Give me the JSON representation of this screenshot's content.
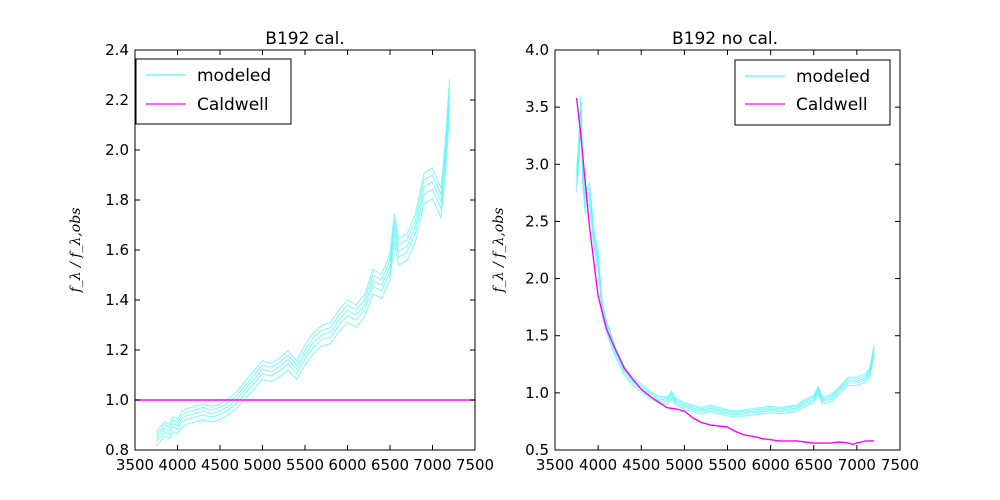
{
  "chart_data": [
    {
      "type": "line",
      "title": "B192 cal.",
      "ylabel": "f_λ / f_λ,obs",
      "xlim": [
        3500,
        7500
      ],
      "ylim": [
        0.8,
        2.4
      ],
      "xticks": [
        3500,
        4000,
        4500,
        5000,
        5500,
        6000,
        6500,
        7000,
        7500
      ],
      "yticks": [
        0.8,
        1.0,
        1.2,
        1.4,
        1.6,
        1.8,
        2.0,
        2.2,
        2.4
      ],
      "ytick_decimals": 1,
      "legend": {
        "position": "top-left",
        "entries": [
          "modeled",
          "Caldwell"
        ]
      },
      "colors": {
        "modeled": "#5ff5f5",
        "caldwell": "#ff00ff"
      },
      "series": [
        {
          "name": "modeled",
          "x": [
            3750,
            3800,
            3850,
            3900,
            3950,
            4000,
            4050,
            4100,
            4200,
            4300,
            4400,
            4500,
            4600,
            4700,
            4800,
            4900,
            5000,
            5100,
            5200,
            5300,
            5400,
            5500,
            5600,
            5700,
            5800,
            5900,
            6000,
            6100,
            6200,
            6300,
            6400,
            6500,
            6550,
            6600,
            6700,
            6800,
            6900,
            7000,
            7100,
            7150,
            7200
          ],
          "y": [
            0.86,
            0.88,
            0.9,
            0.89,
            0.92,
            0.91,
            0.94,
            0.95,
            0.96,
            0.97,
            0.96,
            0.97,
            0.99,
            1.02,
            1.06,
            1.1,
            1.14,
            1.13,
            1.15,
            1.18,
            1.14,
            1.2,
            1.25,
            1.28,
            1.29,
            1.34,
            1.38,
            1.36,
            1.4,
            1.5,
            1.48,
            1.56,
            1.72,
            1.62,
            1.64,
            1.72,
            1.88,
            1.9,
            1.82,
            2.0,
            2.25
          ]
        },
        {
          "name": "Caldwell",
          "x": [
            3500,
            7500
          ],
          "y": [
            1.0,
            1.0
          ]
        }
      ]
    },
    {
      "type": "line",
      "title": "B192 no cal.",
      "ylabel": "f_λ / f_λ,obs",
      "xlim": [
        3500,
        7500
      ],
      "ylim": [
        0.5,
        4.0
      ],
      "xticks": [
        3500,
        4000,
        4500,
        5000,
        5500,
        6000,
        6500,
        7000,
        7500
      ],
      "yticks": [
        0.5,
        1.0,
        1.5,
        2.0,
        2.5,
        3.0,
        3.5,
        4.0
      ],
      "ytick_decimals": 1,
      "legend": {
        "position": "top-right",
        "entries": [
          "modeled",
          "Caldwell"
        ]
      },
      "colors": {
        "modeled": "#5ff5f5",
        "caldwell": "#ff00ff"
      },
      "series": [
        {
          "name": "modeled",
          "x": [
            3750,
            3780,
            3800,
            3820,
            3850,
            3900,
            3950,
            4000,
            4050,
            4100,
            4200,
            4300,
            4400,
            4500,
            4600,
            4700,
            4800,
            4850,
            4900,
            5000,
            5100,
            5200,
            5300,
            5400,
            5500,
            5600,
            5700,
            5800,
            5900,
            6000,
            6100,
            6200,
            6300,
            6400,
            6500,
            6550,
            6600,
            6700,
            6800,
            6900,
            7000,
            7100,
            7150,
            7200
          ],
          "y": [
            2.9,
            3.2,
            3.55,
            3.0,
            2.7,
            2.8,
            2.4,
            2.2,
            1.75,
            1.6,
            1.38,
            1.22,
            1.12,
            1.06,
            1.0,
            0.96,
            0.95,
            1.0,
            0.94,
            0.9,
            0.88,
            0.86,
            0.88,
            0.86,
            0.84,
            0.83,
            0.84,
            0.85,
            0.86,
            0.87,
            0.86,
            0.87,
            0.88,
            0.93,
            0.96,
            1.04,
            0.95,
            0.97,
            1.04,
            1.12,
            1.12,
            1.15,
            1.2,
            1.4
          ]
        },
        {
          "name": "Caldwell",
          "x": [
            3750,
            3800,
            3850,
            3900,
            3950,
            4000,
            4050,
            4100,
            4200,
            4300,
            4400,
            4500,
            4600,
            4700,
            4800,
            4900,
            5000,
            5100,
            5200,
            5300,
            5400,
            5500,
            5600,
            5700,
            5800,
            5900,
            6000,
            6100,
            6200,
            6300,
            6400,
            6500,
            6600,
            6700,
            6800,
            6900,
            6950,
            7000,
            7100,
            7200
          ],
          "y": [
            3.58,
            3.25,
            2.85,
            2.45,
            2.15,
            1.85,
            1.7,
            1.55,
            1.38,
            1.22,
            1.12,
            1.03,
            0.97,
            0.92,
            0.87,
            0.86,
            0.84,
            0.78,
            0.74,
            0.72,
            0.71,
            0.7,
            0.66,
            0.63,
            0.62,
            0.6,
            0.59,
            0.58,
            0.58,
            0.58,
            0.57,
            0.56,
            0.56,
            0.56,
            0.57,
            0.56,
            0.55,
            0.56,
            0.58,
            0.58
          ]
        }
      ]
    }
  ]
}
